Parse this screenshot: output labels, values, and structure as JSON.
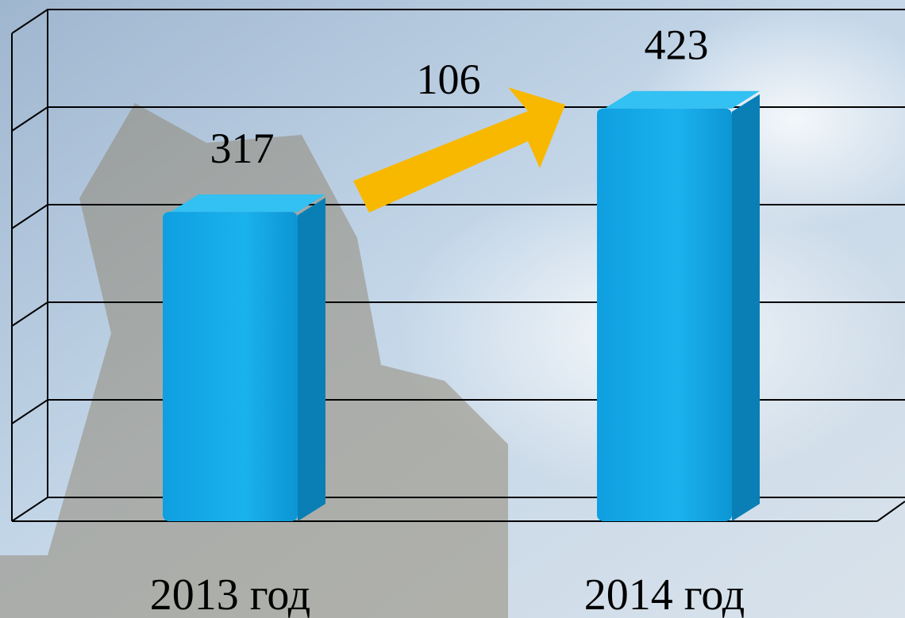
{
  "chart_data": {
    "type": "bar3d",
    "categories": [
      "2013 год",
      "2014 год"
    ],
    "values": [
      317,
      423
    ],
    "color": "#14a9e8",
    "ylim": [
      0,
      500
    ],
    "yticks": [
      0,
      100,
      200,
      300,
      400,
      500
    ],
    "grid": true,
    "annotation": "106"
  }
}
